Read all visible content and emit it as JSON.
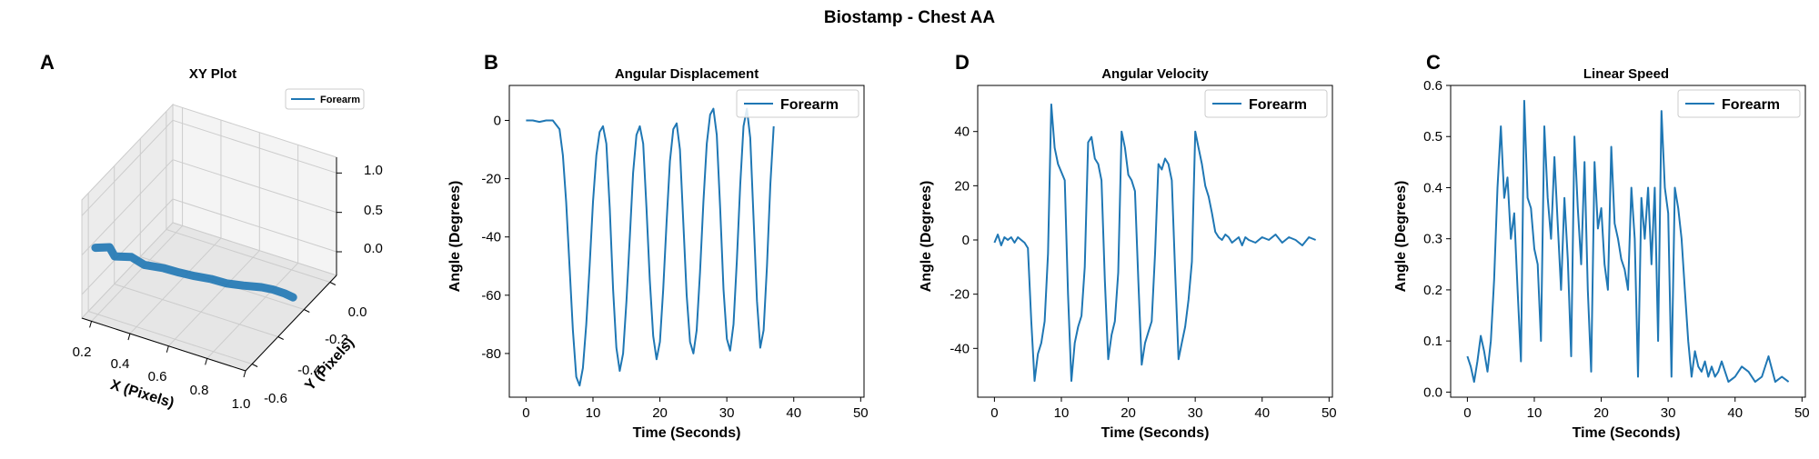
{
  "figure": {
    "title": "Biostamp - Chest AA"
  },
  "colors": {
    "series": "#1f77b4",
    "axis": "#000000",
    "legend_border": "#cccccc",
    "pane": "#f2f2f2",
    "grid3d": "#cccccc"
  },
  "chart_data": [
    {
      "panel_letter": "A",
      "type": "line3d",
      "title": "XY Plot",
      "xlabel": "X (Pixels)",
      "ylabel": "Y (Pixels)",
      "zlabel": "",
      "xticks": [
        "0.2",
        "0.4",
        "0.6",
        "0.8",
        "1.0"
      ],
      "yticks": [
        "0.0",
        "-0.2",
        "-0.4",
        "-0.6"
      ],
      "zticks": [
        "0.0",
        "0.5",
        "1.0"
      ],
      "xlim": [
        0.15,
        1.0
      ],
      "ylim": [
        -0.65,
        0.05
      ],
      "zlim": [
        -0.3,
        1.2
      ],
      "legend": [
        "Forearm"
      ],
      "legend_loc": "upper right",
      "series": [
        {
          "name": "Forearm",
          "path": [
            [
              0.2,
              0.02,
              0.58
            ],
            [
              0.26,
              0.0,
              0.6
            ],
            [
              0.3,
              0.02,
              0.55
            ],
            [
              0.36,
              -0.02,
              0.52
            ],
            [
              0.42,
              -0.03,
              0.45
            ],
            [
              0.5,
              -0.06,
              0.42
            ],
            [
              0.56,
              -0.09,
              0.36
            ],
            [
              0.62,
              -0.12,
              0.31
            ],
            [
              0.68,
              -0.16,
              0.25
            ],
            [
              0.74,
              -0.19,
              0.19
            ],
            [
              0.8,
              -0.23,
              0.14
            ],
            [
              0.86,
              -0.28,
              0.08
            ],
            [
              0.9,
              -0.31,
              0.03
            ],
            [
              0.94,
              -0.34,
              -0.04
            ],
            [
              0.97,
              -0.36,
              -0.1
            ]
          ]
        }
      ]
    },
    {
      "panel_letter": "B",
      "type": "line",
      "title": "Angular Displacement",
      "xlabel": "Time (Seconds)",
      "ylabel": "Angle (Degrees)",
      "xlim": [
        -2.5,
        50.5
      ],
      "ylim": [
        -95,
        12
      ],
      "xticks": [
        0,
        10,
        20,
        30,
        40,
        50
      ],
      "yticks": [
        0,
        -20,
        -40,
        -60,
        -80
      ],
      "legend": [
        "Forearm"
      ],
      "legend_loc": "upper right",
      "series": [
        {
          "name": "Forearm",
          "x": [
            0,
            1,
            2,
            3,
            4,
            5,
            5.5,
            6,
            6.5,
            7,
            7.5,
            8,
            8.5,
            9,
            9.5,
            10,
            10.5,
            11,
            11.5,
            12,
            12.5,
            13,
            13.5,
            14,
            14.5,
            15,
            15.5,
            16,
            16.5,
            17,
            17.5,
            18,
            18.5,
            19,
            19.5,
            20,
            20.5,
            21,
            21.5,
            22,
            22.5,
            23,
            23.5,
            24,
            24.5,
            25,
            25.5,
            26,
            26.5,
            27,
            27.5,
            28,
            28.5,
            29,
            29.5,
            30,
            30.5,
            31,
            31.5,
            32,
            32.5,
            33,
            33.5,
            34,
            34.5,
            35,
            35.5,
            36,
            36.5,
            37
          ],
          "y": [
            0,
            0,
            -0.5,
            0,
            0,
            -3,
            -12,
            -28,
            -50,
            -72,
            -88,
            -91,
            -85,
            -70,
            -50,
            -28,
            -12,
            -4,
            -2,
            -8,
            -30,
            -58,
            -78,
            -86,
            -80,
            -62,
            -40,
            -18,
            -5,
            -2,
            -8,
            -30,
            -55,
            -74,
            -82,
            -76,
            -58,
            -35,
            -14,
            -3,
            -1,
            -10,
            -35,
            -60,
            -76,
            -80,
            -72,
            -52,
            -28,
            -8,
            2,
            4,
            -5,
            -30,
            -58,
            -75,
            -79,
            -70,
            -48,
            -22,
            -2,
            4,
            -6,
            -34,
            -62,
            -78,
            -72,
            -50,
            -22,
            -2
          ]
        }
      ]
    },
    {
      "panel_letter": "D",
      "type": "line",
      "title": "Angular Velocity",
      "xlabel": "Time (Seconds)",
      "ylabel": "Angle (Degrees)",
      "xlim": [
        -2.5,
        50.5
      ],
      "ylim": [
        -58,
        57
      ],
      "xticks": [
        0,
        10,
        20,
        30,
        40,
        50
      ],
      "yticks": [
        40,
        20,
        0,
        -20,
        -40
      ],
      "legend": [
        "Forearm"
      ],
      "legend_loc": "upper right",
      "series": [
        {
          "name": "Forearm",
          "x": [
            0,
            0.5,
            1,
            1.5,
            2,
            2.5,
            3,
            3.5,
            4,
            4.5,
            5,
            5.5,
            6,
            6.5,
            7,
            7.5,
            8,
            8.5,
            9,
            9.5,
            10,
            10.5,
            11,
            11.5,
            12,
            12.5,
            13,
            13.5,
            14,
            14.5,
            15,
            15.5,
            16,
            16.5,
            17,
            17.5,
            18,
            18.5,
            19,
            19.5,
            20,
            20.5,
            21,
            21.5,
            22,
            22.5,
            23,
            23.5,
            24,
            24.5,
            25,
            25.5,
            26,
            26.5,
            27,
            27.5,
            28,
            28.5,
            29,
            29.5,
            30,
            30.5,
            31,
            31.5,
            32,
            32.5,
            33,
            33.5,
            34,
            34.5,
            35,
            35.5,
            36,
            36.5,
            37,
            37.5,
            38,
            39,
            40,
            41,
            42,
            43,
            44,
            45,
            46,
            47,
            48
          ],
          "y": [
            -1,
            2,
            -2,
            1,
            0,
            1,
            -1,
            1,
            0,
            -1,
            -3,
            -30,
            -52,
            -42,
            -38,
            -30,
            -5,
            50,
            34,
            28,
            25,
            22,
            -20,
            -52,
            -38,
            -32,
            -28,
            -10,
            36,
            38,
            30,
            28,
            22,
            -15,
            -44,
            -35,
            -30,
            -12,
            40,
            34,
            24,
            22,
            18,
            -15,
            -46,
            -38,
            -34,
            -30,
            -5,
            28,
            26,
            30,
            28,
            22,
            -12,
            -44,
            -38,
            -32,
            -22,
            -8,
            40,
            34,
            28,
            20,
            16,
            10,
            3,
            1,
            0,
            2,
            1,
            -1,
            0,
            1,
            -2,
            1,
            0,
            -1,
            1,
            0,
            2,
            -1,
            1,
            0,
            -2,
            1,
            0
          ]
        }
      ]
    },
    {
      "panel_letter": "C",
      "type": "line",
      "title": "Linear Speed",
      "xlabel": "Time (Seconds)",
      "ylabel": "Angle (Degrees)",
      "xlim": [
        -2.5,
        50.5
      ],
      "ylim": [
        -0.01,
        0.6
      ],
      "xticks": [
        0,
        10,
        20,
        30,
        40,
        50
      ],
      "yticks": [
        0.0,
        0.1,
        0.2,
        0.3,
        0.4,
        0.5,
        0.6
      ],
      "legend": [
        "Forearm"
      ],
      "legend_loc": "upper right",
      "series": [
        {
          "name": "Forearm",
          "x": [
            0,
            0.5,
            1,
            1.5,
            2,
            2.5,
            3,
            3.5,
            4,
            4.5,
            5,
            5.5,
            6,
            6.5,
            7,
            7.5,
            8,
            8.5,
            9,
            9.5,
            10,
            10.5,
            11,
            11.5,
            12,
            12.5,
            13,
            13.5,
            14,
            14.5,
            15,
            15.5,
            16,
            16.5,
            17,
            17.5,
            18,
            18.5,
            19,
            19.5,
            20,
            20.5,
            21,
            21.5,
            22,
            22.5,
            23,
            23.5,
            24,
            24.5,
            25,
            25.5,
            26,
            26.5,
            27,
            27.5,
            28,
            28.5,
            29,
            29.5,
            30,
            30.5,
            31,
            31.5,
            32,
            32.5,
            33,
            33.5,
            34,
            34.5,
            35,
            35.5,
            36,
            36.5,
            37,
            37.5,
            38,
            39,
            40,
            41,
            42,
            43,
            44,
            45,
            46,
            47,
            48
          ],
          "y": [
            0.07,
            0.05,
            0.02,
            0.06,
            0.11,
            0.08,
            0.04,
            0.1,
            0.22,
            0.4,
            0.52,
            0.38,
            0.42,
            0.3,
            0.35,
            0.2,
            0.06,
            0.57,
            0.38,
            0.36,
            0.28,
            0.25,
            0.1,
            0.52,
            0.38,
            0.3,
            0.46,
            0.33,
            0.2,
            0.38,
            0.26,
            0.07,
            0.5,
            0.36,
            0.25,
            0.45,
            0.2,
            0.04,
            0.45,
            0.32,
            0.36,
            0.25,
            0.2,
            0.48,
            0.33,
            0.3,
            0.26,
            0.24,
            0.2,
            0.4,
            0.3,
            0.03,
            0.38,
            0.3,
            0.4,
            0.25,
            0.4,
            0.1,
            0.55,
            0.4,
            0.35,
            0.03,
            0.4,
            0.36,
            0.3,
            0.2,
            0.1,
            0.03,
            0.08,
            0.05,
            0.04,
            0.06,
            0.03,
            0.05,
            0.03,
            0.04,
            0.06,
            0.02,
            0.03,
            0.05,
            0.04,
            0.02,
            0.03,
            0.07,
            0.02,
            0.03,
            0.02
          ]
        }
      ]
    }
  ]
}
